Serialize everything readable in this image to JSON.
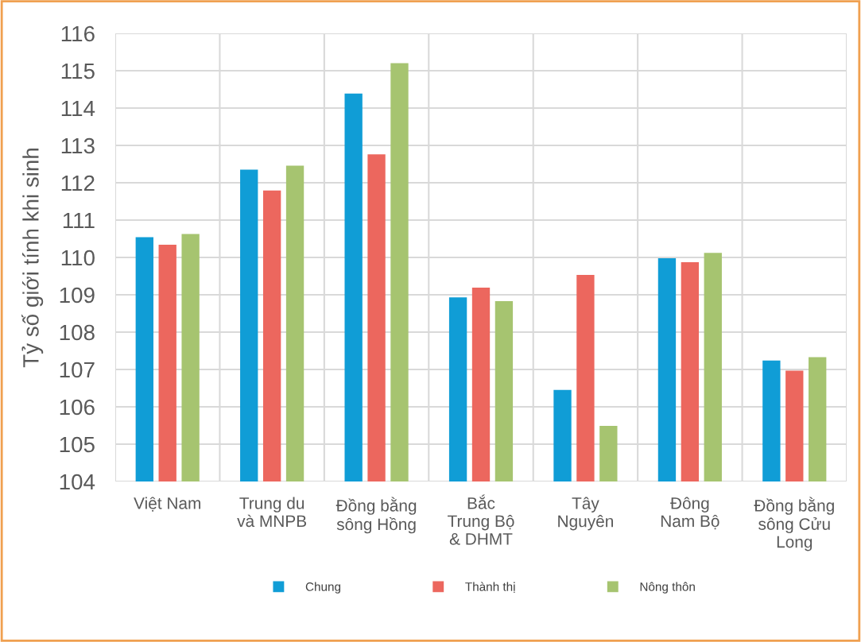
{
  "chart_data": {
    "type": "bar",
    "ylabel": "Tỷ số giới tính khi sinh",
    "categories": [
      "Việt Nam",
      "Trung du\nvà MNPB",
      "Đồng bằng\nsông Hồng",
      "Bắc\nTrung Bộ\n& DHMT",
      "Tây\nNguyên",
      "Đông\nNam Bộ",
      "Đồng bằng\nsông Cửu\nLong"
    ],
    "series": [
      {
        "name": "Chung",
        "color": "#109dd6",
        "values": [
          110.54,
          112.35,
          114.39,
          108.93,
          106.45,
          109.98,
          107.24
        ]
      },
      {
        "name": "Thành thị",
        "color": "#ec675e",
        "values": [
          110.34,
          111.79,
          112.76,
          109.19,
          109.53,
          109.87,
          106.97
        ]
      },
      {
        "name": "Nông thôn",
        "color": "#a6c470",
        "values": [
          110.63,
          112.46,
          115.2,
          108.83,
          105.49,
          110.12,
          107.33
        ]
      }
    ],
    "ylim": [
      104,
      116
    ],
    "yticks": [
      104,
      105,
      106,
      107,
      108,
      109,
      110,
      111,
      112,
      113,
      114,
      115,
      116
    ],
    "grid": true,
    "legend": "bottom"
  }
}
